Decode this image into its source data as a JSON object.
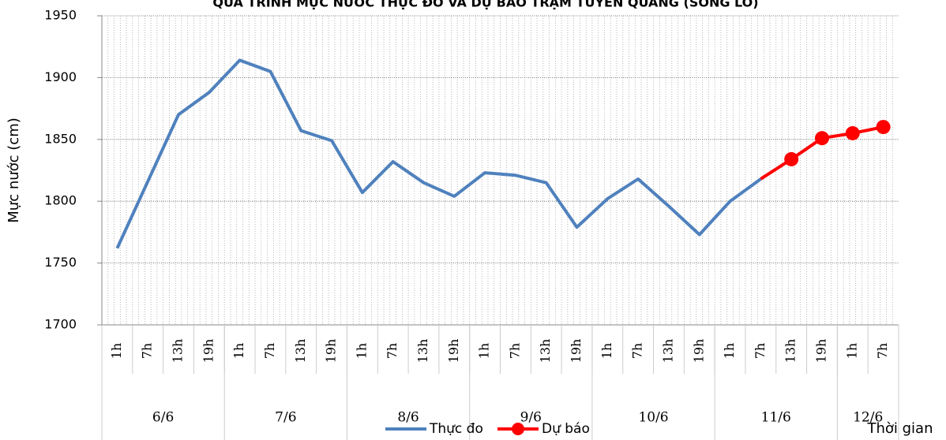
{
  "chart_data": {
    "type": "line",
    "title": "QUÁ TRÌNH MỰC NƯỚC THỰC ĐO VÀ DỰ BÁO TRẠM TUYÊN QUANG (SÔNG LÔ)",
    "y_label": "Mực nước (cm)",
    "x_label": "Thời gian",
    "categories": [
      "1h",
      "7h",
      "13h",
      "19h",
      "1h",
      "7h",
      "13h",
      "19h",
      "1h",
      "7h",
      "13h",
      "19h",
      "1h",
      "7h",
      "13h",
      "19h",
      "1h",
      "7h",
      "13h",
      "19h",
      "1h",
      "7h",
      "13h",
      "19h",
      "1h",
      "7h"
    ],
    "date_labels": [
      "6/6",
      null,
      null,
      null,
      "7/6",
      null,
      null,
      null,
      "8/6",
      null,
      null,
      null,
      "9/6",
      null,
      null,
      null,
      "10/6",
      null,
      null,
      null,
      "11/6",
      null,
      null,
      null,
      "12/6",
      null
    ],
    "series": [
      {
        "name": "Thực đo",
        "color": "#4f81bd",
        "values": [
          1762,
          1816,
          1870,
          1888,
          1914,
          1905,
          1857,
          1849,
          1807,
          1832,
          1815,
          1804,
          1823,
          1821,
          1815,
          1779,
          1802,
          1818,
          1796,
          1773,
          1800,
          1818,
          null,
          null,
          null,
          null
        ]
      },
      {
        "name": "Dự báo",
        "color": "#ff0000",
        "values": [
          null,
          null,
          null,
          null,
          null,
          null,
          null,
          null,
          null,
          null,
          null,
          null,
          null,
          null,
          null,
          null,
          null,
          null,
          null,
          null,
          null,
          null,
          1834,
          1851,
          1855,
          1860
        ]
      }
    ],
    "ylim": [
      1700,
      1950
    ],
    "yticks": [
      1700,
      1750,
      1800,
      1850,
      1900,
      1950
    ],
    "grid": true,
    "legend": "bottom"
  }
}
